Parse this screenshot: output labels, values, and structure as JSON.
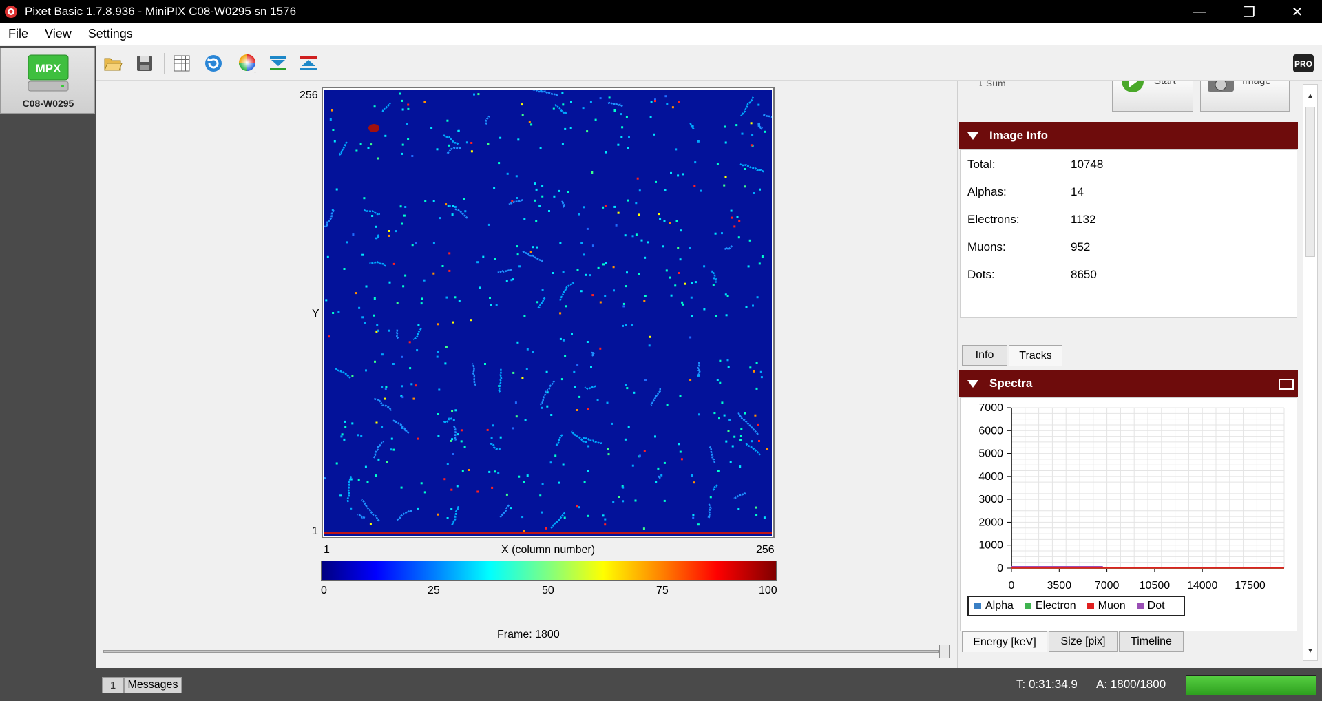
{
  "window": {
    "title": "Pixet Basic 1.7.8.936 - MiniPIX C08-W0295 sn 1576",
    "minimize_glyph": "—",
    "maximize_glyph": "❐",
    "close_glyph": "✕"
  },
  "menu": {
    "file": "File",
    "view": "View",
    "settings": "Settings"
  },
  "sidebar": {
    "device_badge": "MPX",
    "device_label": "C08-W0295"
  },
  "toolbar": {
    "icons": [
      "folder-open-icon",
      "save-icon",
      "grid-icon",
      "refresh-icon",
      "color-wheel-icon",
      "collapse-icon",
      "expand-icon"
    ],
    "pro_badge": "PRO"
  },
  "detector": {
    "y_top": "256",
    "y_label": "Y",
    "y_bottom": "1",
    "x_left": "1",
    "x_label": "X (column number)",
    "x_right": "256",
    "colorbar_ticks": [
      "0",
      "25",
      "50",
      "75",
      "100"
    ],
    "frame_label": "Frame: 1800"
  },
  "top_controls": {
    "sum_label": "Sum",
    "start_label": "Start",
    "image_label": "Image"
  },
  "image_info": {
    "title": "Image Info",
    "rows": [
      {
        "label": "Total:",
        "value": "10748"
      },
      {
        "label": "Alphas:",
        "value": "14"
      },
      {
        "label": "Electrons:",
        "value": "1132"
      },
      {
        "label": "Muons:",
        "value": "952"
      },
      {
        "label": "Dots:",
        "value": "8650"
      }
    ],
    "tabs": [
      "Info",
      "Tracks"
    ],
    "active_tab": "Tracks"
  },
  "spectra": {
    "title": "Spectra",
    "tabs": [
      "Energy [keV]",
      "Size [pix]",
      "Timeline"
    ],
    "active_tab": "Energy [keV]",
    "legend": [
      {
        "name": "Alpha",
        "color": "#3a7fc4"
      },
      {
        "name": "Electron",
        "color": "#3fb34f"
      },
      {
        "name": "Muon",
        "color": "#e02020"
      },
      {
        "name": "Dot",
        "color": "#9a4fb5"
      }
    ]
  },
  "chart_data": {
    "type": "line",
    "y_ticks": [
      "7000",
      "6000",
      "5000",
      "4000",
      "3000",
      "2000",
      "1000",
      "0"
    ],
    "x_ticks": [
      "0",
      "3500",
      "7000",
      "10500",
      "14000",
      "17500"
    ],
    "ylim": [
      0,
      7000
    ],
    "xlim": [
      0,
      20000
    ],
    "grid": true,
    "legend_position": "bottom",
    "series": [
      {
        "name": "Alpha",
        "x": [
          0,
          20000
        ],
        "y": [
          0,
          0
        ]
      },
      {
        "name": "Electron",
        "x": [
          0,
          20000
        ],
        "y": [
          0,
          0
        ]
      },
      {
        "name": "Muon",
        "x": [
          0,
          20000
        ],
        "y": [
          10,
          10
        ]
      },
      {
        "name": "Dot",
        "x": [
          0,
          6700
        ],
        "y": [
          60,
          60
        ]
      }
    ]
  },
  "status": {
    "messages_count": "1",
    "messages_label": "Messages",
    "time": "T: 0:31:34.9",
    "acquisitions": "A: 1800/1800",
    "progress": 1.0
  }
}
